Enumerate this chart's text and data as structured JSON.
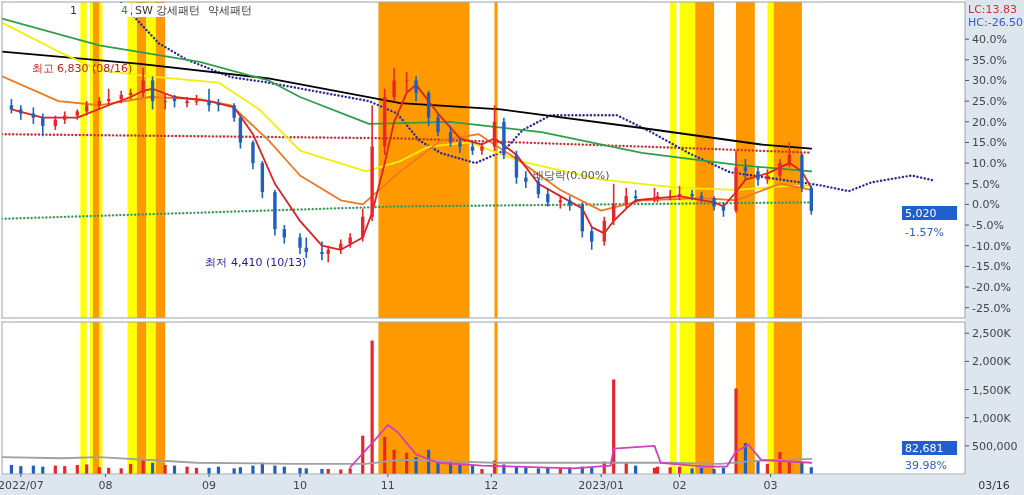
{
  "chart_data": [
    {
      "type": "candlestick",
      "tick_labels": "y",
      "xlim": [
        "2022-07-01",
        "2023-05-04"
      ],
      "ylim": [
        -27.5,
        49
      ],
      "yticks": [
        {
          "value": 40,
          "label": "40.0%"
        },
        {
          "value": 35,
          "label": "35.0%"
        },
        {
          "value": 30,
          "label": "30.0%"
        },
        {
          "value": 25,
          "label": "25.0%"
        },
        {
          "value": 20,
          "label": "20.0%"
        },
        {
          "value": 15,
          "label": "15.0%"
        },
        {
          "value": 10,
          "label": "10.0%"
        },
        {
          "value": 5,
          "label": "5.0%"
        },
        {
          "value": 0,
          "label": "0.0%"
        },
        {
          "value": -5,
          "label": "-5.0%"
        },
        {
          "value": -10,
          "label": "-10.0%"
        },
        {
          "value": -15,
          "label": "-15.0%"
        },
        {
          "value": -20,
          "label": "-20.0%"
        },
        {
          "value": -25,
          "label": "-25.0%"
        }
      ],
      "x": [
        "2022-07-04",
        "2022-07-07",
        "2022-07-11",
        "2022-07-14",
        "2022-07-18",
        "2022-07-21",
        "2022-07-25",
        "2022-07-28",
        "2022-08-01",
        "2022-08-04",
        "2022-08-08",
        "2022-08-11",
        "2022-08-15",
        "2022-08-18",
        "2022-08-22",
        "2022-08-25",
        "2022-08-29",
        "2022-09-01",
        "2022-09-05",
        "2022-09-08",
        "2022-09-13",
        "2022-09-15",
        "2022-09-19",
        "2022-09-22",
        "2022-09-26",
        "2022-09-29",
        "2022-10-04",
        "2022-10-06",
        "2022-10-11",
        "2022-10-13",
        "2022-10-17",
        "2022-10-20",
        "2022-10-24",
        "2022-10-27",
        "2022-10-31",
        "2022-11-03",
        "2022-11-07",
        "2022-11-10",
        "2022-11-14",
        "2022-11-17",
        "2022-11-21",
        "2022-11-24",
        "2022-11-28",
        "2022-12-01",
        "2022-12-05",
        "2022-12-08",
        "2022-12-12",
        "2022-12-15",
        "2022-12-19",
        "2022-12-22",
        "2022-12-26",
        "2022-12-29",
        "2023-01-02",
        "2023-01-05",
        "2023-01-09",
        "2023-01-12",
        "2023-01-16",
        "2023-01-19",
        "2023-01-25",
        "2023-01-26",
        "2023-01-30",
        "2023-02-02",
        "2023-02-06",
        "2023-02-09",
        "2023-02-13",
        "2023-02-16",
        "2023-02-20",
        "2023-02-23",
        "2023-02-27",
        "2023-03-02",
        "2023-03-06",
        "2023-03-09",
        "2023-03-13",
        "2023-03-16"
      ],
      "ohlc": [
        [
          24,
          25.5,
          22,
          23
        ],
        [
          23,
          24,
          20.5,
          22
        ],
        [
          22,
          23.5,
          19.5,
          21
        ],
        [
          21,
          22,
          16.5,
          19
        ],
        [
          19,
          21.5,
          18,
          20.5
        ],
        [
          20.5,
          22.5,
          19.5,
          21.5
        ],
        [
          21.5,
          23,
          20.5,
          22.5
        ],
        [
          22.5,
          25,
          21.5,
          24
        ],
        [
          24,
          26,
          23,
          25
        ],
        [
          25,
          28,
          24,
          25.5
        ],
        [
          25.5,
          27.5,
          24.5,
          26.5
        ],
        [
          26.5,
          28,
          25.5,
          27
        ],
        [
          27,
          33,
          26,
          30
        ],
        [
          30,
          31,
          23,
          25
        ],
        [
          25,
          27,
          23,
          25
        ],
        [
          25.5,
          26.5,
          23.5,
          25
        ],
        [
          24.5,
          26,
          23.5,
          25
        ],
        [
          25,
          26.5,
          24,
          25
        ],
        [
          25,
          28,
          22.5,
          24
        ],
        [
          24.5,
          25.5,
          22.5,
          24
        ],
        [
          24,
          24.5,
          20,
          21
        ],
        [
          21,
          21.5,
          13.5,
          15
        ],
        [
          15,
          15.5,
          8.5,
          10
        ],
        [
          10,
          10.5,
          1.5,
          3
        ],
        [
          3,
          3.5,
          -7.5,
          -6
        ],
        [
          -6,
          -5,
          -9.5,
          -8
        ],
        [
          -8,
          -7,
          -12,
          -10.5
        ],
        [
          -10.5,
          -8,
          -13,
          -11.5
        ],
        [
          -11.5,
          -9,
          -13.5,
          -12
        ],
        [
          -12,
          -10,
          -14,
          -11
        ],
        [
          -11,
          -8.5,
          -12,
          -9.5
        ],
        [
          -9.5,
          -7,
          -10.5,
          -8
        ],
        [
          -8,
          -1,
          -9,
          -3
        ],
        [
          -3,
          24,
          -4,
          14
        ],
        [
          14,
          28,
          12,
          26
        ],
        [
          26,
          33,
          25,
          30
        ],
        [
          30,
          32,
          27,
          30
        ],
        [
          30,
          31,
          25,
          27
        ],
        [
          27,
          27.5,
          19,
          21
        ],
        [
          21,
          22,
          16.5,
          17.5
        ],
        [
          17.5,
          19,
          14,
          15
        ],
        [
          15,
          16,
          12.5,
          14
        ],
        [
          14,
          15,
          12,
          13
        ],
        [
          13,
          15,
          12,
          14
        ],
        [
          14,
          24,
          13,
          20
        ],
        [
          20,
          21,
          11,
          12
        ],
        [
          12,
          13,
          5,
          6.5
        ],
        [
          6.5,
          8,
          4,
          5.5
        ],
        [
          5.5,
          6.5,
          1.5,
          2.5
        ],
        [
          2.5,
          4,
          -0.5,
          0.5
        ],
        [
          0.5,
          2,
          -1,
          1
        ],
        [
          1,
          2,
          -1.5,
          0
        ],
        [
          0,
          0.5,
          -8,
          -6.5
        ],
        [
          -6.5,
          -5.5,
          -11,
          -9
        ],
        [
          -9,
          -3,
          -10,
          -4
        ],
        [
          -4,
          5,
          -5,
          0
        ],
        [
          0,
          4,
          -1,
          2
        ],
        [
          2,
          3.5,
          0.5,
          1.5
        ],
        [
          1.5,
          4,
          0.5,
          1.5
        ],
        [
          1.5,
          3,
          0.5,
          2
        ],
        [
          2,
          3.5,
          1,
          2
        ],
        [
          2,
          4.5,
          1,
          2.5
        ],
        [
          2.5,
          3.5,
          1,
          2
        ],
        [
          2,
          3,
          0.5,
          1.5
        ],
        [
          1.5,
          2,
          -1.5,
          -0.5
        ],
        [
          -0.5,
          0.5,
          -3,
          -1.5
        ],
        [
          -1.5,
          13,
          -2,
          9
        ],
        [
          9,
          11,
          6,
          8
        ],
        [
          8,
          9,
          4.5,
          6
        ],
        [
          6,
          8.5,
          5,
          7
        ],
        [
          7,
          11,
          6,
          10
        ],
        [
          10,
          15,
          9,
          12
        ],
        [
          12,
          12.5,
          3,
          4
        ],
        [
          4,
          4.5,
          -2.5,
          -1.57
        ]
      ],
      "colors": [
        "#1f5fbf",
        "#1f5fbf",
        "#1f5fbf",
        "#1f5fbf",
        "#e8262a",
        "#e8262a",
        "#e8262a",
        "#e8262a",
        "#e8262a",
        "#e8262a",
        "#e8262a",
        "#e8262a",
        "#e8262a",
        "#1f5fbf",
        "#e8262a",
        "#1f5fbf",
        "#e8262a",
        "#e8262a",
        "#1f5fbf",
        "#1f5fbf",
        "#1f5fbf",
        "#1f5fbf",
        "#1f5fbf",
        "#1f5fbf",
        "#1f5fbf",
        "#1f5fbf",
        "#1f5fbf",
        "#1f5fbf",
        "#1f5fbf",
        "#e8262a",
        "#e8262a",
        "#e8262a",
        "#e8262a",
        "#e8262a",
        "#e8262a",
        "#e8262a",
        "#e8262a",
        "#1f5fbf",
        "#1f5fbf",
        "#1f5fbf",
        "#1f5fbf",
        "#1f5fbf",
        "#1f5fbf",
        "#e8262a",
        "#e8262a",
        "#1f5fbf",
        "#1f5fbf",
        "#1f5fbf",
        "#1f5fbf",
        "#1f5fbf",
        "#e8262a",
        "#1f5fbf",
        "#1f5fbf",
        "#1f5fbf",
        "#e8262a",
        "#e8262a",
        "#e8262a",
        "#1f5fbf",
        "#e8262a",
        "#e8262a",
        "#e8262a",
        "#e8262a",
        "#1f5fbf",
        "#1f5fbf",
        "#1f5fbf",
        "#1f5fbf",
        "#e8262a",
        "#1f5fbf",
        "#1f5fbf",
        "#e8262a",
        "#e8262a",
        "#e8262a",
        "#1f5fbf",
        "#1f5fbf"
      ],
      "bands": [
        {
          "axis": "x",
          "from": "2022-07-26",
          "to": "2022-07-28",
          "color": "#ffff00"
        },
        {
          "axis": "x",
          "from": "2022-07-29",
          "to": "2022-07-30",
          "color": "#ffff00"
        },
        {
          "axis": "x",
          "from": "2022-07-30",
          "to": "2022-08-01",
          "color": "#ff9900"
        },
        {
          "axis": "x",
          "from": "2022-08-01",
          "to": "2022-08-02",
          "color": "#ffff00"
        },
        {
          "axis": "x",
          "from": "2022-08-10",
          "to": "2022-08-13",
          "color": "#ffff00"
        },
        {
          "axis": "x",
          "from": "2022-08-13",
          "to": "2022-08-16",
          "color": "#ff9900"
        },
        {
          "axis": "x",
          "from": "2022-08-16",
          "to": "2022-08-19",
          "color": "#ffff00"
        },
        {
          "axis": "x",
          "from": "2022-08-19",
          "to": "2022-08-22",
          "color": "#ff9900"
        },
        {
          "axis": "x",
          "from": "2022-10-29",
          "to": "2022-11-27",
          "color": "#ff9900"
        },
        {
          "axis": "x",
          "from": "2022-12-05",
          "to": "2022-12-06",
          "color": "#ff9900"
        },
        {
          "axis": "x",
          "from": "2023-01-30",
          "to": "2023-02-01",
          "color": "#ffff00"
        },
        {
          "axis": "x",
          "from": "2023-02-02",
          "to": "2023-02-07",
          "color": "#ffff00"
        },
        {
          "axis": "x",
          "from": "2023-02-07",
          "to": "2023-02-13",
          "color": "#ff9900"
        },
        {
          "axis": "x",
          "from": "2023-02-20",
          "to": "2023-02-26",
          "color": "#ff9900"
        },
        {
          "axis": "x",
          "from": "2023-03-02",
          "to": "2023-03-04",
          "color": "#ffff00"
        },
        {
          "axis": "x",
          "from": "2023-03-04",
          "to": "2023-03-13",
          "color": "#ff9900"
        }
      ],
      "series": [
        {
          "type": "line",
          "line_style": "dotted",
          "color": "#c83030",
          "x": [
            "2022-07-01",
            "2022-11-04",
            "2023-02-09",
            "2023-03-16"
          ],
          "values": [
            17,
            16,
            13.5,
            12.5
          ]
        },
        {
          "type": "line",
          "line_style": "dotted",
          "color": "#3a9a5a",
          "x": [
            "2022-07-01",
            "2022-09-02",
            "2022-11-04",
            "2023-01-08",
            "2023-03-16"
          ],
          "values": [
            -3.5,
            -2,
            -0.5,
            0,
            0.5
          ]
        },
        {
          "type": "line",
          "line_style": "dotted",
          "color": "#2a2aa0",
          "x": [
            "2022-08-08",
            "2022-08-20",
            "2022-08-29",
            "2022-09-12",
            "2022-09-23",
            "2022-10-26",
            "2022-11-04",
            "2022-11-11",
            "2022-11-18",
            "2022-11-29",
            "2022-12-08",
            "2022-12-14",
            "2022-12-23",
            "2023-01-13",
            "2023-01-24",
            "2023-02-05",
            "2023-02-18",
            "2023-03-19",
            "2023-03-28",
            "2023-04-04",
            "2023-04-17",
            "2023-04-24"
          ],
          "values": [
            48.8,
            39,
            35,
            30.8,
            29.6,
            25,
            22,
            15.5,
            12.4,
            10,
            13,
            18,
            21.6,
            21.6,
            17.5,
            12.4,
            7.8,
            4.6,
            3.2,
            5.3,
            7,
            5.8
          ]
        },
        {
          "type": "line",
          "line_style": "solid",
          "color": "#000000",
          "x": [
            "2022-07-01",
            "2022-08-14",
            "2022-09-24",
            "2022-11-05",
            "2022-12-07",
            "2023-01-21",
            "2023-02-28",
            "2023-03-16"
          ],
          "values": [
            37,
            34,
            30.5,
            24.5,
            23,
            18.5,
            14.5,
            13.5
          ]
        },
        {
          "type": "line",
          "line_style": "solid",
          "color": "#2e9e4a",
          "x": [
            "2022-07-01",
            "2022-08-01",
            "2022-09-02",
            "2022-09-24",
            "2022-10-04",
            "2022-10-26",
            "2022-11-21",
            "2022-12-20",
            "2023-01-21",
            "2023-02-21",
            "2023-03-16"
          ],
          "values": [
            45,
            38.5,
            34.5,
            30,
            26,
            19.5,
            20,
            17.5,
            12.5,
            9.5,
            8
          ]
        },
        {
          "type": "line",
          "line_style": "solid",
          "color": "#f2f000",
          "x": [
            "2022-07-01",
            "2022-07-19",
            "2022-08-01",
            "2022-08-17",
            "2022-09-08",
            "2022-09-21",
            "2022-10-04",
            "2022-10-25",
            "2022-11-05",
            "2022-11-14",
            "2022-11-27",
            "2022-12-13",
            "2023-01-08",
            "2023-02-02",
            "2023-02-20",
            "2023-03-09",
            "2023-03-16"
          ],
          "values": [
            44,
            37,
            32.5,
            31,
            29.5,
            23,
            13,
            8,
            10.5,
            14,
            15,
            10.5,
            6,
            4,
            3.5,
            4.5,
            4.5
          ]
        },
        {
          "type": "line",
          "line_style": "solid",
          "color": "#f07820",
          "x": [
            "2022-07-01",
            "2022-07-19",
            "2022-08-01",
            "2022-08-17",
            "2022-09-02",
            "2022-09-12",
            "2022-09-24",
            "2022-10-04",
            "2022-10-17",
            "2022-10-24",
            "2022-11-05",
            "2022-11-18",
            "2022-11-30",
            "2022-12-13",
            "2022-12-26",
            "2023-01-08",
            "2023-01-21",
            "2023-02-09",
            "2023-02-20",
            "2023-03-06",
            "2023-03-16"
          ],
          "values": [
            31,
            25,
            24,
            26,
            25.5,
            24,
            15.5,
            7,
            1,
            0,
            8,
            15.5,
            17,
            10.5,
            3.5,
            -1.5,
            1,
            1.5,
            1,
            5,
            3.5
          ]
        },
        {
          "type": "line",
          "line_style": "solid",
          "color": "#e02020",
          "x": [
            "2022-07-04",
            "2022-07-14",
            "2022-07-25",
            "2022-08-04",
            "2022-08-11",
            "2022-08-15",
            "2022-08-18",
            "2022-08-25",
            "2022-09-05",
            "2022-09-13",
            "2022-09-19",
            "2022-09-26",
            "2022-10-04",
            "2022-10-11",
            "2022-10-17",
            "2022-10-24",
            "2022-10-27",
            "2022-10-31",
            "2022-11-03",
            "2022-11-07",
            "2022-11-10",
            "2022-11-17",
            "2022-11-24",
            "2022-12-01",
            "2022-12-05",
            "2022-12-12",
            "2022-12-19",
            "2022-12-26",
            "2023-01-02",
            "2023-01-05",
            "2023-01-09",
            "2023-01-12",
            "2023-01-16",
            "2023-01-19",
            "2023-02-02",
            "2023-02-13",
            "2023-02-16",
            "2023-02-20",
            "2023-02-23",
            "2023-03-02",
            "2023-03-09",
            "2023-03-13",
            "2023-03-16"
          ],
          "values": [
            23,
            21,
            21,
            24,
            26,
            27.5,
            28,
            26,
            25,
            23.5,
            17,
            5,
            -4,
            -10,
            -11,
            -8,
            -2,
            10,
            20,
            27,
            29,
            22,
            16,
            14.5,
            16,
            12,
            5,
            2,
            -1,
            -5.5,
            -7,
            -4,
            -1,
            1,
            2,
            0.5,
            -0.5,
            3,
            6,
            7.5,
            10,
            8,
            4
          ]
        }
      ],
      "annotations": [
        "1",
        "4",
        "SW 강세패턴",
        "약세패턴",
        "LC:13.83",
        "HC:-26.50",
        "5,020",
        "-1.57%",
        {
          "text": "최고 6,830 (08/16)",
          "x": "2022-08-16",
          "y": 33
        },
        {
          "text": "최저 4,410 (10/13)",
          "x": "2022-10-13",
          "y": -14
        },
        "배당락(0.00%)"
      ]
    },
    {
      "type": "bar",
      "xlim": [
        "2022-07-01",
        "2023-05-04"
      ],
      "ylim": [
        0,
        2700000
      ],
      "xticks": [
        {
          "value": "2022-07-07",
          "label": "2022/07"
        },
        {
          "value": "2022-08-03",
          "label": "08"
        },
        {
          "value": "2022-09-05",
          "label": "09"
        },
        {
          "value": "2022-10-04",
          "label": "10"
        },
        {
          "value": "2022-11-01",
          "label": "11"
        },
        {
          "value": "2022-12-04",
          "label": "12"
        },
        {
          "value": "2023-01-08",
          "label": "2023/01"
        },
        {
          "value": "2023-02-02",
          "label": "02"
        },
        {
          "value": "2023-03-03",
          "label": "03"
        }
      ],
      "yticks": [
        {
          "value": 500000,
          "label": "500,000"
        },
        {
          "value": 1000000,
          "label": "1,000K"
        },
        {
          "value": 1500000,
          "label": "1,500K"
        },
        {
          "value": 2000000,
          "label": "2,000K"
        },
        {
          "value": 2500000,
          "label": "2,500K"
        }
      ],
      "x": [
        "2022-07-04",
        "2022-07-07",
        "2022-07-11",
        "2022-07-14",
        "2022-07-18",
        "2022-07-21",
        "2022-07-25",
        "2022-07-28",
        "2022-08-01",
        "2022-08-04",
        "2022-08-08",
        "2022-08-11",
        "2022-08-15",
        "2022-08-18",
        "2022-08-22",
        "2022-08-25",
        "2022-08-29",
        "2022-09-01",
        "2022-09-05",
        "2022-09-08",
        "2022-09-13",
        "2022-09-15",
        "2022-09-19",
        "2022-09-22",
        "2022-09-26",
        "2022-09-29",
        "2022-10-04",
        "2022-10-06",
        "2022-10-11",
        "2022-10-13",
        "2022-10-17",
        "2022-10-20",
        "2022-10-24",
        "2022-10-27",
        "2022-10-31",
        "2022-11-03",
        "2022-11-07",
        "2022-11-10",
        "2022-11-14",
        "2022-11-17",
        "2022-11-21",
        "2022-11-24",
        "2022-11-28",
        "2022-12-01",
        "2022-12-05",
        "2022-12-08",
        "2022-12-12",
        "2022-12-15",
        "2022-12-19",
        "2022-12-22",
        "2022-12-26",
        "2022-12-29",
        "2023-01-02",
        "2023-01-05",
        "2023-01-09",
        "2023-01-12",
        "2023-01-16",
        "2023-01-19",
        "2023-01-25",
        "2023-01-26",
        "2023-01-30",
        "2023-02-02",
        "2023-02-06",
        "2023-02-09",
        "2023-02-13",
        "2023-02-16",
        "2023-02-20",
        "2023-02-23",
        "2023-02-27",
        "2023-03-02",
        "2023-03-06",
        "2023-03-09",
        "2023-03-13",
        "2023-03-16"
      ],
      "values": [
        160000,
        140000,
        150000,
        130000,
        150000,
        140000,
        160000,
        170000,
        120000,
        110000,
        100000,
        180000,
        260000,
        200000,
        160000,
        150000,
        130000,
        110000,
        110000,
        130000,
        100000,
        120000,
        150000,
        200000,
        150000,
        130000,
        110000,
        100000,
        90000,
        90000,
        80000,
        100000,
        680000,
        2370000,
        660000,
        430000,
        380000,
        300000,
        430000,
        200000,
        220000,
        180000,
        150000,
        90000,
        240000,
        170000,
        140000,
        120000,
        100000,
        110000,
        100000,
        120000,
        130000,
        110000,
        220000,
        1680000,
        200000,
        150000,
        110000,
        130000,
        120000,
        130000,
        100000,
        110000,
        90000,
        110000,
        1520000,
        550000,
        250000,
        180000,
        390000,
        230000,
        200000,
        120000
      ],
      "colors": [
        "#1f5fbf",
        "#1f5fbf",
        "#1f5fbf",
        "#1f5fbf",
        "#e8262a",
        "#e8262a",
        "#e8262a",
        "#e8262a",
        "#e8262a",
        "#e8262a",
        "#e8262a",
        "#e8262a",
        "#e8262a",
        "#1f5fbf",
        "#e8262a",
        "#1f5fbf",
        "#e8262a",
        "#e8262a",
        "#1f5fbf",
        "#1f5fbf",
        "#1f5fbf",
        "#1f5fbf",
        "#1f5fbf",
        "#1f5fbf",
        "#1f5fbf",
        "#1f5fbf",
        "#1f5fbf",
        "#1f5fbf",
        "#1f5fbf",
        "#e8262a",
        "#e8262a",
        "#e8262a",
        "#e8262a",
        "#e8262a",
        "#e8262a",
        "#e8262a",
        "#e8262a",
        "#1f5fbf",
        "#1f5fbf",
        "#1f5fbf",
        "#1f5fbf",
        "#1f5fbf",
        "#1f5fbf",
        "#e8262a",
        "#e8262a",
        "#1f5fbf",
        "#1f5fbf",
        "#1f5fbf",
        "#1f5fbf",
        "#1f5fbf",
        "#e8262a",
        "#1f5fbf",
        "#1f5fbf",
        "#1f5fbf",
        "#e8262a",
        "#e8262a",
        "#e8262a",
        "#1f5fbf",
        "#e8262a",
        "#e8262a",
        "#e8262a",
        "#e8262a",
        "#1f5fbf",
        "#1f5fbf",
        "#1f5fbf",
        "#1f5fbf",
        "#e8262a",
        "#1f5fbf",
        "#1f5fbf",
        "#e8262a",
        "#e8262a",
        "#e8262a",
        "#1f5fbf",
        "#1f5fbf"
      ],
      "bands": [
        {
          "axis": "x",
          "from": "2022-07-26",
          "to": "2022-07-28",
          "color": "#ffff00"
        },
        {
          "axis": "x",
          "from": "2022-07-29",
          "to": "2022-07-30",
          "color": "#ffff00"
        },
        {
          "axis": "x",
          "from": "2022-07-30",
          "to": "2022-08-01",
          "color": "#ff9900"
        },
        {
          "axis": "x",
          "from": "2022-08-01",
          "to": "2022-08-02",
          "color": "#ffff00"
        },
        {
          "axis": "x",
          "from": "2022-08-10",
          "to": "2022-08-13",
          "color": "#ffff00"
        },
        {
          "axis": "x",
          "from": "2022-08-13",
          "to": "2022-08-16",
          "color": "#ff9900"
        },
        {
          "axis": "x",
          "from": "2022-08-16",
          "to": "2022-08-19",
          "color": "#ffff00"
        },
        {
          "axis": "x",
          "from": "2022-08-19",
          "to": "2022-08-22",
          "color": "#ff9900"
        },
        {
          "axis": "x",
          "from": "2022-10-29",
          "to": "2022-11-27",
          "color": "#ff9900"
        },
        {
          "axis": "x",
          "from": "2022-12-05",
          "to": "2022-12-06",
          "color": "#ff9900"
        },
        {
          "axis": "x",
          "from": "2023-01-30",
          "to": "2023-02-01",
          "color": "#ffff00"
        },
        {
          "axis": "x",
          "from": "2023-02-02",
          "to": "2023-02-07",
          "color": "#ffff00"
        },
        {
          "axis": "x",
          "from": "2023-02-07",
          "to": "2023-02-13",
          "color": "#ff9900"
        },
        {
          "axis": "x",
          "from": "2023-02-20",
          "to": "2023-02-26",
          "color": "#ff9900"
        },
        {
          "axis": "x",
          "from": "2023-03-02",
          "to": "2023-03-04",
          "color": "#ffff00"
        },
        {
          "axis": "x",
          "from": "2023-03-04",
          "to": "2023-03-13",
          "color": "#ff9900"
        }
      ],
      "series": [
        {
          "type": "line",
          "line_style": "solid",
          "color": "#a0a0a0",
          "x": [
            "2022-07-01",
            "2022-07-20",
            "2022-08-01",
            "2022-09-01",
            "2022-10-01",
            "2022-10-25",
            "2022-11-05",
            "2022-12-05",
            "2023-01-10",
            "2023-01-30",
            "2023-02-15",
            "2023-02-25",
            "2023-03-16"
          ],
          "values": [
            300000,
            280000,
            300000,
            200000,
            180000,
            180000,
            250000,
            200000,
            200000,
            200000,
            180000,
            230000,
            270000
          ]
        },
        {
          "type": "line",
          "line_style": "solid",
          "color": "#d040c0",
          "x": [
            "2022-10-20",
            "2022-10-27",
            "2022-11-01",
            "2022-11-04",
            "2022-11-10",
            "2022-11-17",
            "2022-12-01",
            "2022-12-30",
            "2023-01-11",
            "2023-01-12",
            "2023-01-25",
            "2023-01-27",
            "2023-02-10",
            "2023-02-17",
            "2023-02-20",
            "2023-02-24",
            "2023-02-28",
            "2023-03-16"
          ],
          "values": [
            120000,
            550000,
            870000,
            750000,
            350000,
            200000,
            150000,
            100000,
            150000,
            450000,
            500000,
            200000,
            130000,
            130000,
            400000,
            520000,
            250000,
            200000
          ]
        }
      ],
      "annotations": [
        "82,681",
        "39.98%",
        "03/16"
      ]
    }
  ]
}
